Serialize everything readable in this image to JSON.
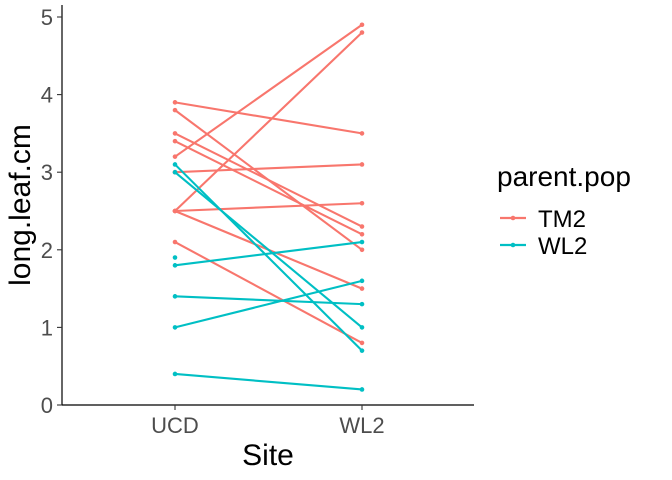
{
  "chart_data": {
    "type": "line",
    "xlabel": "Site",
    "ylabel": "long.leaf.cm",
    "categories": [
      "UCD",
      "WL2"
    ],
    "ylim": [
      0,
      5
    ],
    "yticks": [
      "0",
      "1",
      "2",
      "3",
      "4",
      "5"
    ],
    "grid": false,
    "legend": {
      "title": "parent.pop",
      "position": "right",
      "entries": [
        {
          "label": "TM2",
          "color": "#F8766D"
        },
        {
          "label": "WL2",
          "color": "#00BFC4"
        }
      ]
    },
    "series": [
      {
        "group": "TM2",
        "color": "#F8766D",
        "lines": [
          [
            3.9,
            3.5
          ],
          [
            3.8,
            2.0
          ],
          [
            3.5,
            2.3
          ],
          [
            3.4,
            2.2
          ],
          [
            3.2,
            4.9
          ],
          [
            2.5,
            4.8
          ],
          [
            2.5,
            2.6
          ],
          [
            3.0,
            3.1
          ],
          [
            2.5,
            1.5
          ],
          [
            2.1,
            0.8
          ]
        ],
        "points": [
          [
            0,
            3.0
          ]
        ]
      },
      {
        "group": "WL2",
        "color": "#00BFC4",
        "lines": [
          [
            3.1,
            0.7
          ],
          [
            3.0,
            1.0
          ],
          [
            1.8,
            2.1
          ],
          [
            1.4,
            1.3
          ],
          [
            1.0,
            1.6
          ],
          [
            0.4,
            0.2
          ]
        ],
        "points": [
          [
            0,
            1.9
          ]
        ]
      }
    ]
  }
}
